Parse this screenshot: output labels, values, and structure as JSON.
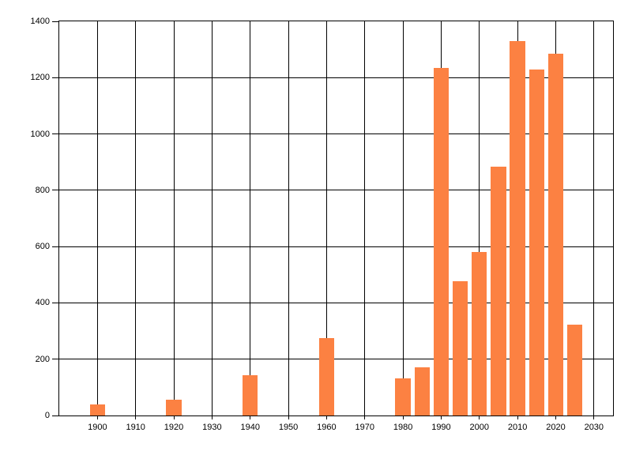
{
  "chart_data": {
    "type": "bar",
    "title": "",
    "xlabel": "",
    "ylabel": "",
    "legend": "none",
    "grid": true,
    "x_axis_range": [
      1890,
      2035
    ],
    "ylim": [
      0,
      1400
    ],
    "x_ticks": [
      1900,
      1910,
      1920,
      1930,
      1940,
      1950,
      1960,
      1970,
      1980,
      1990,
      2000,
      2010,
      2020,
      2030
    ],
    "x_tick_labels": [
      "1900",
      "1910",
      "1920",
      "1930",
      "1940",
      "1950",
      "1960",
      "1970",
      "1980",
      "1990",
      "2000",
      "2010",
      "2020",
      "2030"
    ],
    "y_ticks": [
      0,
      200,
      400,
      600,
      800,
      1000,
      1200,
      1400
    ],
    "y_tick_labels": [
      "0",
      "200",
      "400",
      "600",
      "800",
      "1000",
      "1200",
      "1400"
    ],
    "bar_width_years": 4,
    "bars": [
      {
        "year": 1900,
        "value": 40
      },
      {
        "year": 1920,
        "value": 55
      },
      {
        "year": 1940,
        "value": 143
      },
      {
        "year": 1960,
        "value": 274
      },
      {
        "year": 1980,
        "value": 133
      },
      {
        "year": 1985,
        "value": 170
      },
      {
        "year": 1990,
        "value": 1235
      },
      {
        "year": 1995,
        "value": 478
      },
      {
        "year": 2000,
        "value": 580
      },
      {
        "year": 2005,
        "value": 884
      },
      {
        "year": 2010,
        "value": 1330
      },
      {
        "year": 2015,
        "value": 1228
      },
      {
        "year": 2020,
        "value": 1285
      },
      {
        "year": 2025,
        "value": 322
      }
    ],
    "colors": {
      "bar": "#FC8142",
      "grid_line": "#000000",
      "axis_text": "#000000",
      "background": "#FFFFFF"
    }
  }
}
